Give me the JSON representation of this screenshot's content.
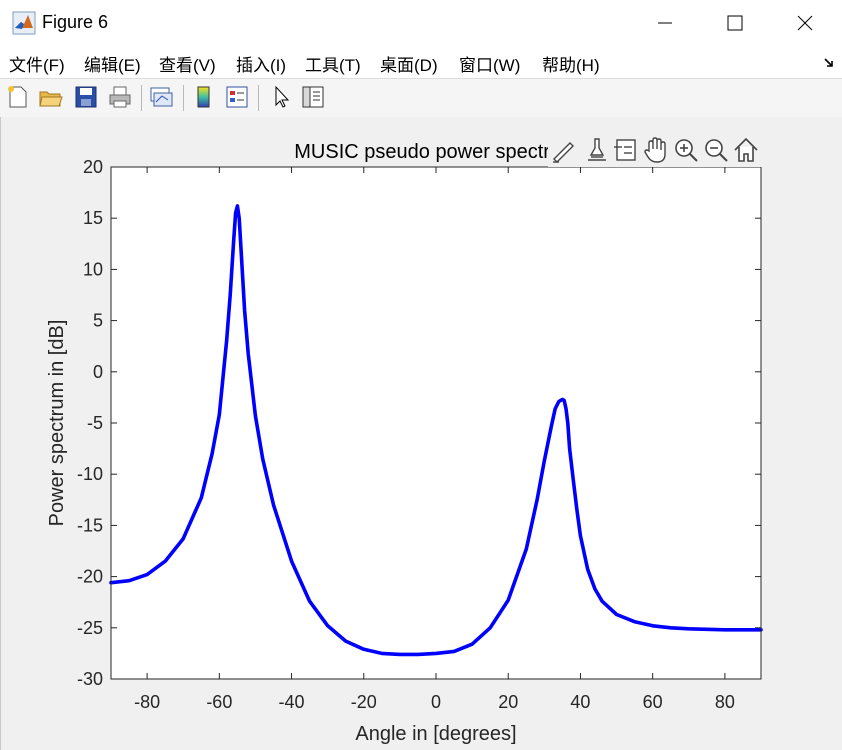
{
  "window": {
    "title": "Figure 6",
    "icon": "matlab-icon"
  },
  "window_buttons": [
    "minimize-icon",
    "maximize-icon",
    "close-icon"
  ],
  "menu": [
    {
      "label": "文件(F)"
    },
    {
      "label": "编辑(E)"
    },
    {
      "label": "查看(V)"
    },
    {
      "label": "插入(I)"
    },
    {
      "label": "工具(T)"
    },
    {
      "label": "桌面(D)"
    },
    {
      "label": "窗口(W)"
    },
    {
      "label": "帮助(H)"
    }
  ],
  "toolbar": [
    "new-figure-icon",
    "open-file-icon",
    "save-icon",
    "print-icon",
    "link-plot-icon",
    "colorbar-icon",
    "legend-icon",
    "edit-plot-icon",
    "property-inspector-icon"
  ],
  "axes_toolbar": [
    "brush-icon",
    "data-cursor-icon",
    "legend-toggle-icon",
    "pan-icon",
    "zoom-in-icon",
    "zoom-out-icon",
    "home-icon"
  ],
  "chart_data": {
    "type": "line",
    "title": "MUSIC pseudo power spectrum",
    "xlabel": "Angle in [degrees]",
    "ylabel": "Power spectrum in [dB]",
    "xlim": [
      -90,
      90
    ],
    "ylim": [
      -30,
      20
    ],
    "xticks": [
      "-80",
      "-60",
      "-40",
      "-20",
      "0",
      "20",
      "40",
      "60",
      "80"
    ],
    "yticks": [
      "20",
      "15",
      "10",
      "5",
      "0",
      "-5",
      "-10",
      "-15",
      "-20",
      "-25",
      "-30"
    ],
    "grid": false,
    "color": "#0000ff",
    "series": [
      {
        "x": [
          -90,
          -85,
          -80,
          -75,
          -70,
          -65,
          -62,
          -60,
          -58,
          -57,
          -56,
          -55.5,
          -55,
          -54.5,
          -54,
          -53,
          -52,
          -50,
          -48,
          -45,
          -40,
          -35,
          -30,
          -25,
          -20,
          -15,
          -10,
          -5,
          0,
          5,
          10,
          15,
          20,
          25,
          28,
          30,
          32,
          33,
          34,
          35,
          35.5,
          36,
          36.5,
          37,
          38,
          39,
          40,
          42,
          44,
          46,
          50,
          55,
          60,
          65,
          70,
          75,
          80,
          85,
          90
        ],
        "y": [
          -20.6,
          -20.4,
          -19.8,
          -18.5,
          -16.3,
          -12.3,
          -8.0,
          -4.2,
          3.0,
          7.5,
          13.0,
          15.5,
          16.2,
          15.0,
          12.0,
          6.0,
          1.8,
          -4.3,
          -8.5,
          -13.0,
          -18.5,
          -22.4,
          -24.8,
          -26.3,
          -27.1,
          -27.5,
          -27.6,
          -27.6,
          -27.5,
          -27.3,
          -26.6,
          -25.0,
          -22.3,
          -17.3,
          -12.5,
          -8.7,
          -5.2,
          -3.6,
          -2.9,
          -2.7,
          -2.8,
          -3.6,
          -5.0,
          -7.5,
          -10.5,
          -13.4,
          -16.0,
          -19.3,
          -21.2,
          -22.4,
          -23.7,
          -24.4,
          -24.8,
          -25.0,
          -25.1,
          -25.15,
          -25.2,
          -25.2,
          -25.2
        ]
      }
    ]
  }
}
